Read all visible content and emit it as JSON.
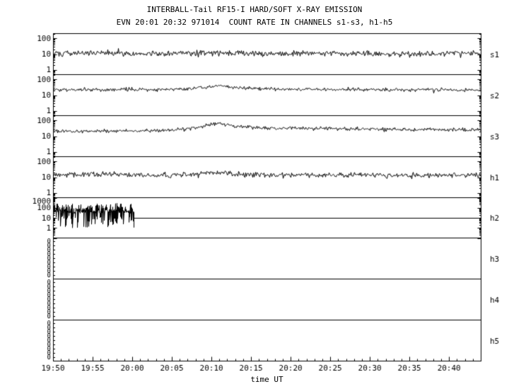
{
  "header": {
    "title": "INTERBALL-Tail RF15-I HARD/SOFT X-RAY EMISSION",
    "subtitle": "EVN 20:01 20:32 971014  COUNT RATE IN CHANNELS s1-s3, h1-h5"
  },
  "chart_data": {
    "type": "line",
    "title": "INTERBALL-Tail RF15-I HARD/SOFT X-RAY EMISSION",
    "subtitle": "EVN 20:01 20:32 971014  COUNT RATE IN CHANNELS s1-s3, h1-h5",
    "xlabel": "time UT",
    "x_min_minutes": 1190,
    "x_max_minutes": 1244,
    "x_minor_step_minutes": 1,
    "x_major_ticks": [
      {
        "minute": 1190,
        "label": "19:50"
      },
      {
        "minute": 1195,
        "label": "19:55"
      },
      {
        "minute": 1200,
        "label": "20:00"
      },
      {
        "minute": 1205,
        "label": "20:05"
      },
      {
        "minute": 1210,
        "label": "20:10"
      },
      {
        "minute": 1215,
        "label": "20:15"
      },
      {
        "minute": 1220,
        "label": "20:20"
      },
      {
        "minute": 1225,
        "label": "20:25"
      },
      {
        "minute": 1230,
        "label": "20:30"
      },
      {
        "minute": 1235,
        "label": "20:35"
      },
      {
        "minute": 1240,
        "label": "20:40"
      }
    ],
    "panels": [
      {
        "label": "s1",
        "scale": "log",
        "y_range": [
          0.5,
          200
        ],
        "y_ticks": [
          {
            "value": 100,
            "label": "100"
          },
          {
            "value": 10,
            "label": "10"
          },
          {
            "value": 1,
            "label": "1"
          }
        ],
        "series": {
          "seed": 101,
          "noise_sigma_log10": 0.09,
          "anchors": [
            [
              1190,
              11
            ],
            [
              1197,
              12
            ],
            [
              1203,
              10.5
            ],
            [
              1210,
              12
            ],
            [
              1218,
              11
            ],
            [
              1226,
              11.5
            ],
            [
              1234,
              10.5
            ],
            [
              1244,
              11.5
            ]
          ]
        }
      },
      {
        "label": "s2",
        "scale": "log",
        "y_range": [
          0.5,
          200
        ],
        "y_ticks": [
          {
            "value": 100,
            "label": "100"
          },
          {
            "value": 10,
            "label": "10"
          },
          {
            "value": 1,
            "label": "1"
          }
        ],
        "series": {
          "seed": 102,
          "noise_sigma_log10": 0.055,
          "anchors": [
            [
              1190,
              22
            ],
            [
              1199,
              22
            ],
            [
              1205,
              23
            ],
            [
              1208,
              27
            ],
            [
              1211,
              38
            ],
            [
              1213.5,
              30
            ],
            [
              1217,
              25
            ],
            [
              1223,
              23
            ],
            [
              1232,
              22
            ],
            [
              1244,
              21
            ]
          ]
        }
      },
      {
        "label": "s3",
        "scale": "log",
        "y_range": [
          0.5,
          200
        ],
        "y_ticks": [
          {
            "value": 100,
            "label": "100"
          },
          {
            "value": 10,
            "label": "10"
          },
          {
            "value": 1,
            "label": "1"
          }
        ],
        "series": {
          "seed": 103,
          "noise_sigma_log10": 0.055,
          "anchors": [
            [
              1190,
              20
            ],
            [
              1198,
              21
            ],
            [
              1204,
              23
            ],
            [
              1208,
              33
            ],
            [
              1210.5,
              70
            ],
            [
              1212.5,
              45
            ],
            [
              1216,
              32
            ],
            [
              1221,
              32
            ],
            [
              1227,
              29
            ],
            [
              1236,
              26
            ],
            [
              1244,
              25
            ]
          ]
        }
      },
      {
        "label": "h1",
        "scale": "log",
        "y_range": [
          0.5,
          200
        ],
        "y_ticks": [
          {
            "value": 100,
            "label": "100"
          },
          {
            "value": 10,
            "label": "10"
          },
          {
            "value": 1,
            "label": "1"
          }
        ],
        "series": {
          "seed": 104,
          "noise_sigma_log10": 0.08,
          "anchors": [
            [
              1190,
              13
            ],
            [
              1195,
              15
            ],
            [
              1200,
              13.5
            ],
            [
              1206,
              14
            ],
            [
              1210.5,
              20
            ],
            [
              1213,
              15
            ],
            [
              1219,
              13.5
            ],
            [
              1228,
              14
            ],
            [
              1237,
              13
            ],
            [
              1244,
              14
            ]
          ]
        }
      },
      {
        "label": "h2",
        "scale": "log",
        "y_range": [
          0.1,
          1000
        ],
        "y_ticks": [
          {
            "value": 1000,
            "label": "1000"
          },
          {
            "value": 100,
            "label": "100"
          },
          {
            "value": 10,
            "label": "10"
          },
          {
            "value": 1,
            "label": "1"
          }
        ],
        "burst": {
          "x0": 1190,
          "x1": 1200.2,
          "band_log10": [
            1.45,
            2.45
          ],
          "spike_prob": 0.45,
          "spike_log10": [
            0.0,
            1.2
          ],
          "seed": 105
        },
        "flat": {
          "x0": 1200.2,
          "x1": 1244,
          "value": 10
        }
      },
      {
        "label": "h3",
        "zero_ticks": 9
      },
      {
        "label": "h4",
        "zero_ticks": 9
      },
      {
        "label": "h5",
        "zero_ticks": 9
      }
    ],
    "layout_hints": {
      "grid": false,
      "y_scale": "log",
      "panel_labels_right": true
    }
  }
}
